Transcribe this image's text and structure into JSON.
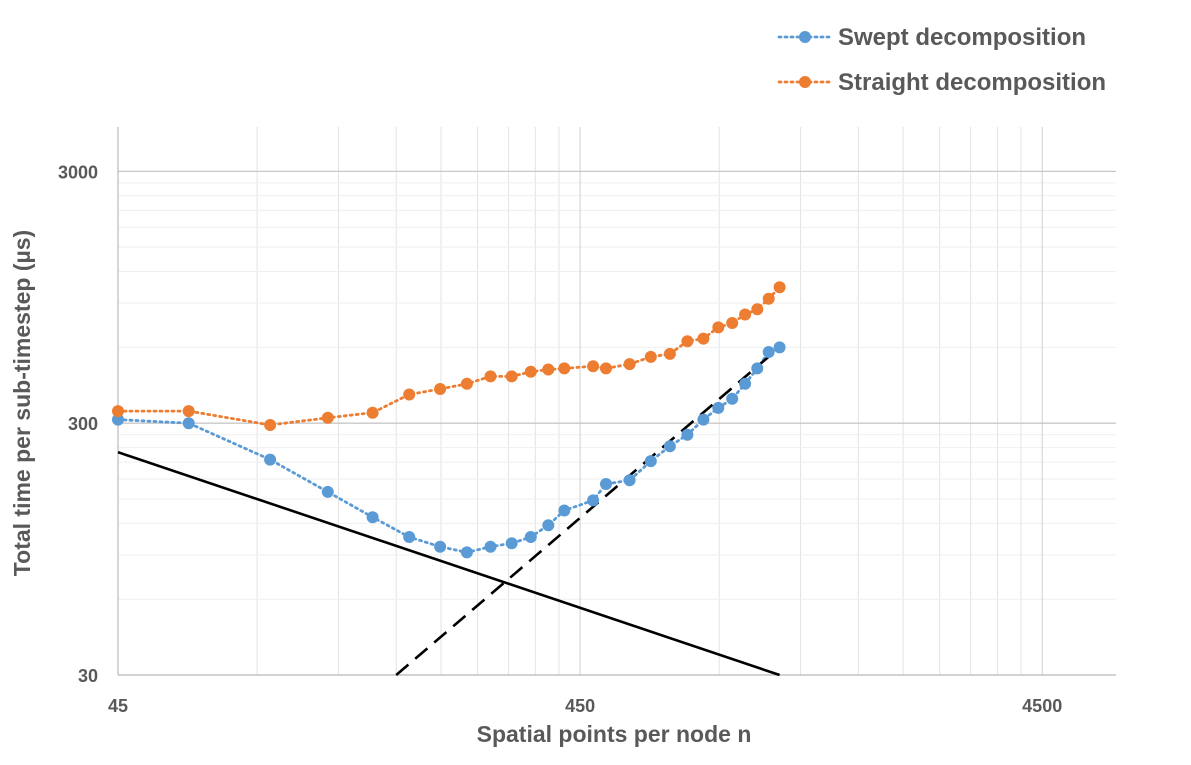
{
  "chart_data": {
    "type": "line",
    "title": "",
    "xlabel": "Spatial points per node n",
    "ylabel": "Total time per sub-timestep (µs)",
    "x_scale": "log",
    "y_scale": "log",
    "xlim": [
      45,
      6500
    ],
    "ylim": [
      30,
      4500
    ],
    "x_ticks": [
      45,
      450,
      4500
    ],
    "x_tick_labels": [
      "45",
      "450",
      "4500"
    ],
    "y_ticks": [
      30,
      300,
      3000
    ],
    "y_tick_labels": [
      "30",
      "300",
      "3000"
    ],
    "grid": true,
    "legend_position": "top-right",
    "series": [
      {
        "name": "Swept decomposition",
        "color": "#5B9BD5",
        "line_style": "dotted",
        "marker": "circle",
        "x": [
          45,
          64,
          96,
          128,
          160,
          192,
          224,
          256,
          288,
          320,
          352,
          384,
          416,
          480,
          512,
          576,
          640,
          704,
          768,
          832,
          896,
          960,
          1024,
          1088,
          1152,
          1216
        ],
        "y": [
          310,
          300,
          215,
          160,
          127,
          106,
          97,
          92,
          97,
          100,
          106,
          118,
          135,
          148,
          172,
          178,
          212,
          243,
          270,
          310,
          345,
          375,
          430,
          495,
          575,
          600
        ]
      },
      {
        "name": "Straight decomposition",
        "color": "#ED7D31",
        "line_style": "dotted",
        "marker": "circle",
        "x": [
          45,
          64,
          96,
          128,
          160,
          192,
          224,
          256,
          288,
          320,
          352,
          384,
          416,
          480,
          512,
          576,
          640,
          704,
          768,
          832,
          896,
          960,
          1024,
          1088,
          1152,
          1216
        ],
        "y": [
          335,
          335,
          295,
          315,
          330,
          390,
          410,
          430,
          460,
          460,
          480,
          490,
          495,
          505,
          495,
          515,
          550,
          565,
          635,
          650,
          720,
          750,
          810,
          850,
          935,
          1040
        ]
      },
      {
        "name": "",
        "color": "#000000",
        "line_style": "solid",
        "marker": "none",
        "x": [
          45,
          1216
        ],
        "y": [
          230,
          30
        ]
      },
      {
        "name": "",
        "color": "#000000",
        "line_style": "dashed",
        "marker": "none",
        "x": [
          180,
          1216
        ],
        "y": [
          30,
          600
        ]
      }
    ]
  }
}
